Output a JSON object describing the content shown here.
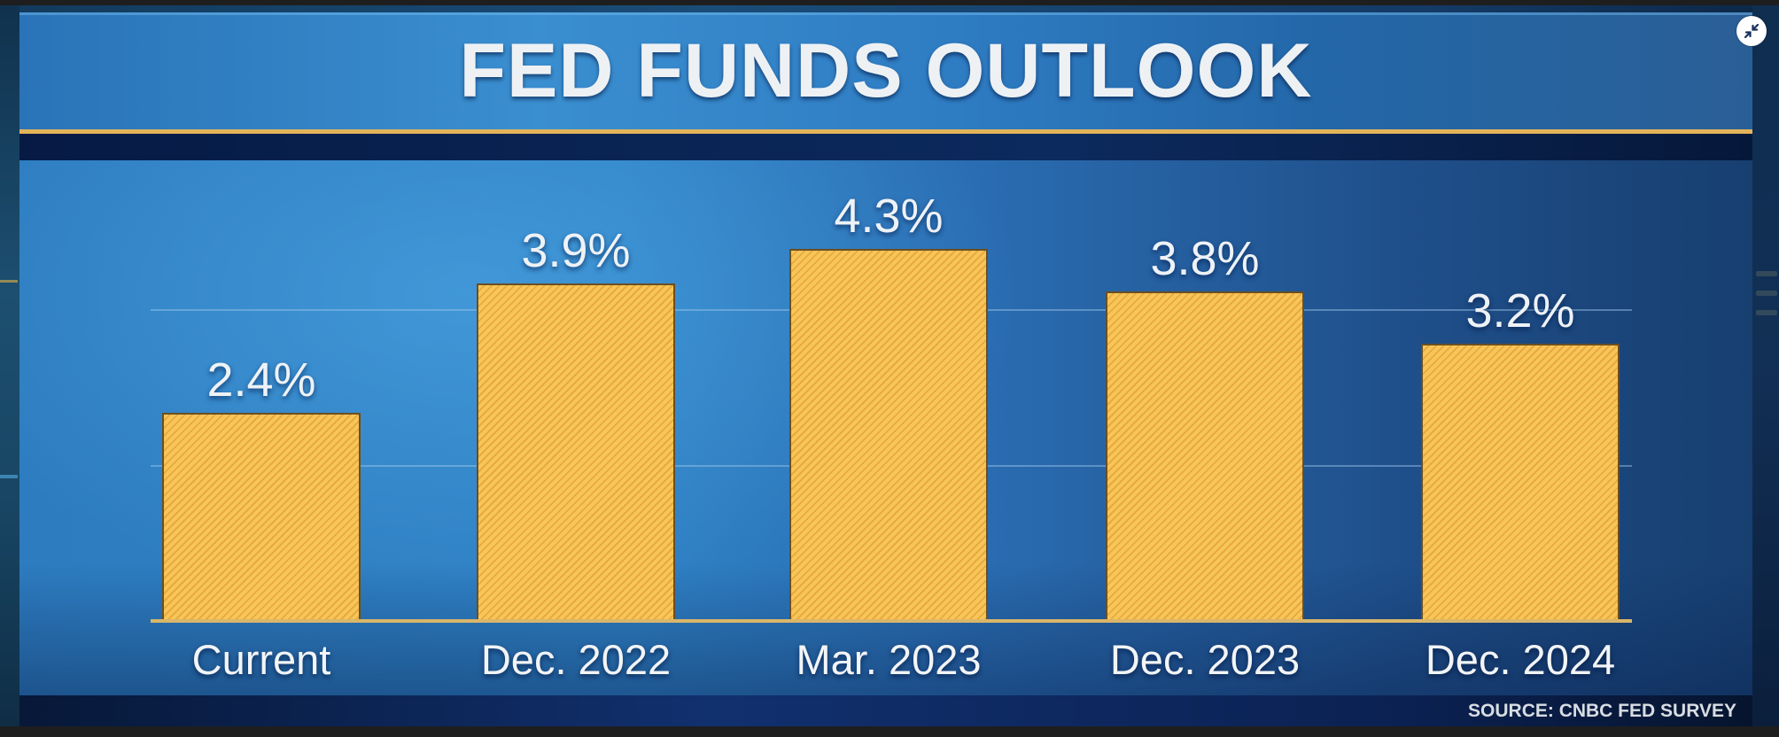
{
  "title": "FED FUNDS OUTLOOK",
  "source": "SOURCE: CNBC FED SURVEY",
  "controls": {
    "collapse_button_icon": "collapse-arrows-icon"
  },
  "colors": {
    "bar_fill": "#f7c65a",
    "bar_stripe": "#eaa93c",
    "accent_rule": "#e3b45a",
    "title_panel": "#2e7bc2",
    "text": "#eef2f6"
  },
  "chart_data": {
    "type": "bar",
    "title": "FED FUNDS OUTLOOK",
    "subtitle": "",
    "xlabel": "",
    "ylabel": "",
    "categories": [
      "Current",
      "Dec. 2022",
      "Mar. 2023",
      "Dec. 2023",
      "Dec. 2024"
    ],
    "values": [
      2.4,
      3.9,
      4.3,
      3.8,
      3.2
    ],
    "value_labels": [
      "2.4%",
      "3.9%",
      "4.3%",
      "3.8%",
      "3.2%"
    ],
    "unit": "%",
    "ylim": [
      0,
      5
    ],
    "grid": true,
    "gridlines_at": [
      1.8,
      3.6
    ],
    "legend": null,
    "annotation": "SOURCE: CNBC FED SURVEY"
  }
}
